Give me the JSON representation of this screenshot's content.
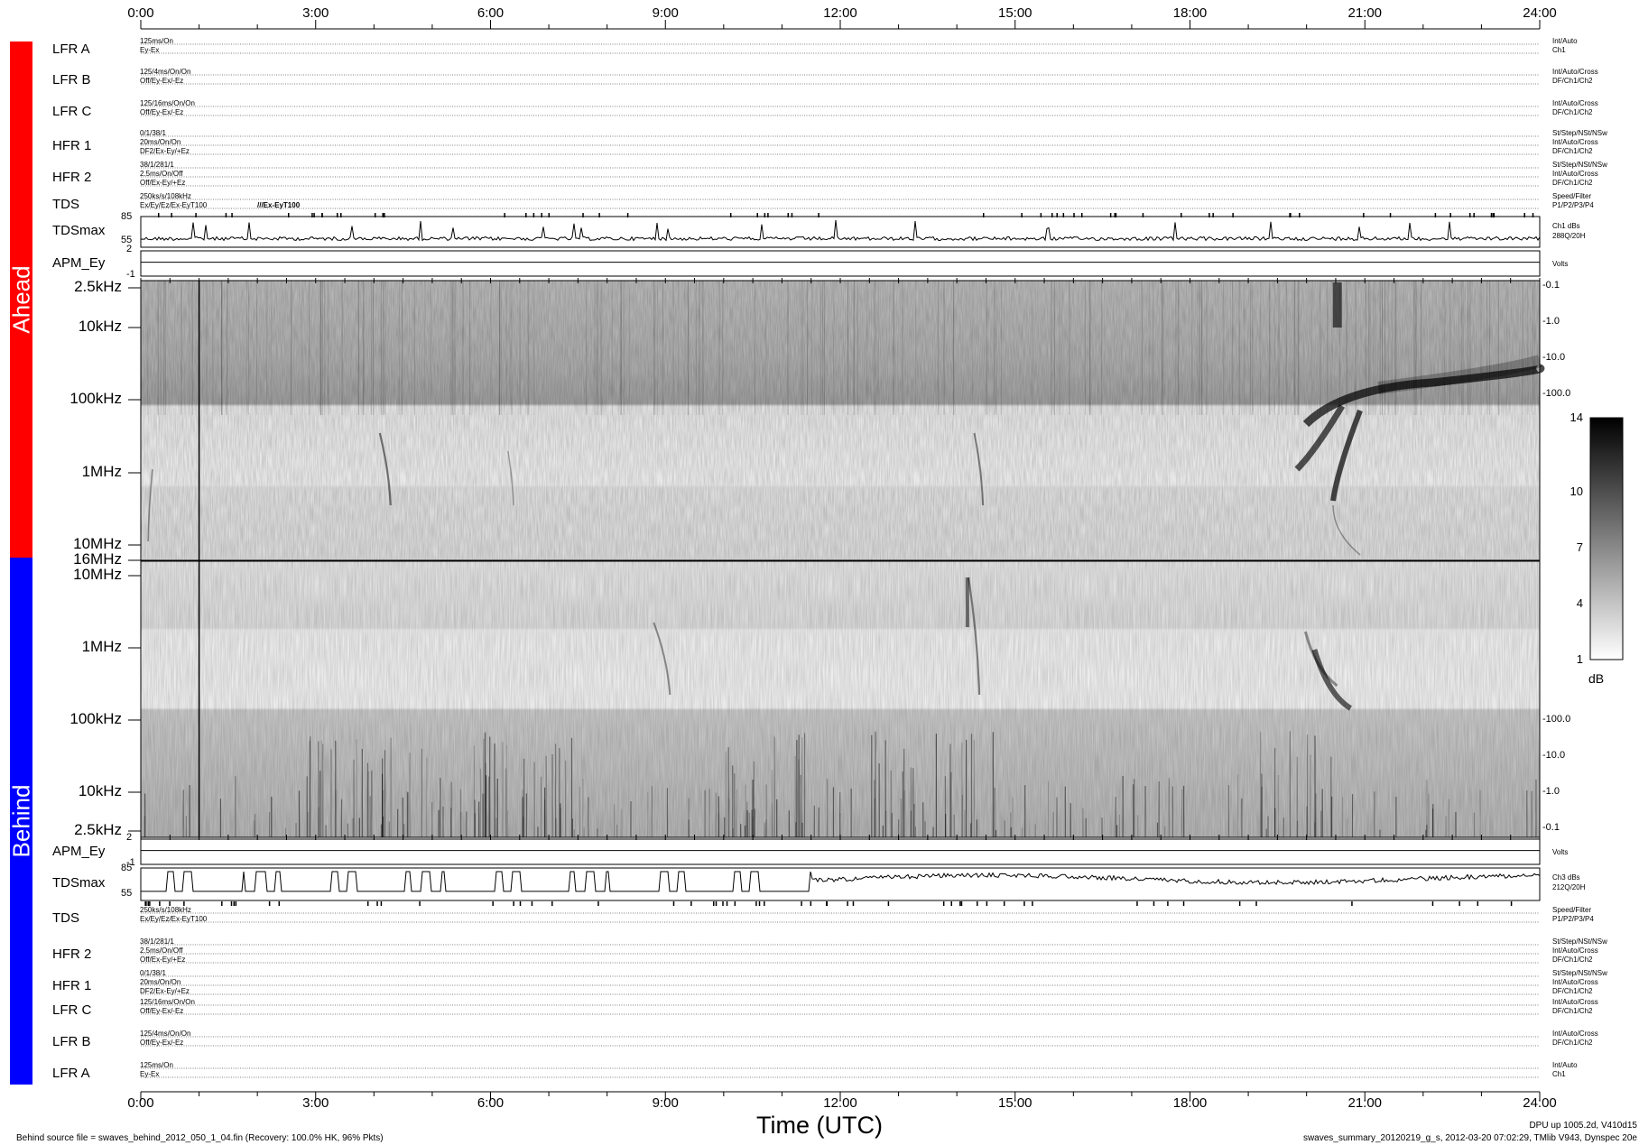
{
  "chart_data": {
    "type": "heatmap",
    "title": "",
    "xlabel": "Time (UTC)",
    "x_ticks": [
      "0:00",
      "3:00",
      "6:00",
      "9:00",
      "12:00",
      "15:00",
      "18:00",
      "21:00",
      "24:00"
    ],
    "side_labels": {
      "ahead": "Ahead",
      "behind": "Behind"
    },
    "colors": {
      "ahead": "#ff0000",
      "behind": "#0000ff"
    },
    "ahead_rows": [
      {
        "name": "LFR A",
        "left": [
          "125ms/On",
          "Ey-Ex"
        ],
        "right": [
          "Int/Auto",
          "Ch1"
        ]
      },
      {
        "name": "LFR B",
        "left": [
          "125/4ms/On/On",
          "Off/Ey-Ex/-Ez"
        ],
        "right": [
          "Int/Auto/Cross",
          "DF/Ch1/Ch2"
        ]
      },
      {
        "name": "LFR C",
        "left": [
          "125/16ms/On/On",
          "Off/Ey-Ex/-Ez"
        ],
        "right": [
          "Int/Auto/Cross",
          "DF/Ch1/Ch2"
        ]
      },
      {
        "name": "HFR 1",
        "left": [
          "0/1/38/1",
          "20ms/On/On",
          "DF2/Ex-Ey/+Ez"
        ],
        "right": [
          "St/Step/NSt/NSw",
          "Int/Auto/Cross",
          "DF/Ch1/Ch2"
        ]
      },
      {
        "name": "HFR 2",
        "left": [
          "38/1/281/1",
          "2.5ms/On/Off",
          "Off/Ex-Ey/+Ez"
        ],
        "right": [
          "St/Step/NSt/NSw",
          "Int/Auto/Cross",
          "DF/Ch1/Ch2"
        ]
      },
      {
        "name": "TDS",
        "left": [
          "250ks/s/108kHz",
          "Ex/Ey/Ez/Ex-EyT100"
        ],
        "right": [
          "Speed/Filter",
          "P1/P2/P3/P4"
        ],
        "extra": "///Ex-EyT100"
      }
    ],
    "behind_rows": [
      {
        "name": "TDS",
        "left": [
          "250ks/s/108kHz",
          "Ex/Ey/Ez/Ex-EyT100"
        ],
        "right": [
          "Speed/Filter",
          "P1/P2/P3/P4"
        ]
      },
      {
        "name": "HFR 2",
        "left": [
          "38/1/281/1",
          "2.5ms/On/Off",
          "Off/Ex-Ey/+Ez"
        ],
        "right": [
          "St/Step/NSt/NSw",
          "Int/Auto/Cross",
          "DF/Ch1/Ch2"
        ]
      },
      {
        "name": "HFR 1",
        "left": [
          "0/1/38/1",
          "20ms/On/On",
          "DF2/Ex-Ey/+Ez"
        ],
        "right": [
          "St/Step/NSt/NSw",
          "Int/Auto/Cross",
          "DF/Ch1/Ch2"
        ]
      },
      {
        "name": "LFR C",
        "left": [
          "125/16ms/On/On",
          "Off/Ey-Ex/-Ez"
        ],
        "right": [
          "Int/Auto/Cross",
          "DF/Ch1/Ch2"
        ]
      },
      {
        "name": "LFR B",
        "left": [
          "125/4ms/On/On",
          "Off/Ey-Ex/-Ez"
        ],
        "right": [
          "Int/Auto/Cross",
          "DF/Ch1/Ch2"
        ]
      },
      {
        "name": "LFR A",
        "left": [
          "125ms/On",
          "Ey-Ex"
        ],
        "right": [
          "Int/Auto",
          "Ch1"
        ]
      }
    ],
    "tdsmax_ahead": {
      "label": "TDSmax",
      "y_ticks": [
        "85",
        "55"
      ],
      "right": [
        "Ch1 dBs",
        "288Q/20H"
      ]
    },
    "apm_ahead": {
      "label": "APM_Ey",
      "y_ticks": [
        "2",
        "-1"
      ],
      "right": "Volts"
    },
    "apm_behind": {
      "label": "APM_Ey",
      "y_ticks": [
        "2",
        "-1"
      ],
      "right": "Volts"
    },
    "tdsmax_behind": {
      "label": "TDSmax",
      "y_ticks": [
        "85",
        "55"
      ],
      "right": [
        "Ch3 dBs",
        "212Q/20H"
      ]
    },
    "spec_ahead": {
      "freq_ticks": [
        "2.5kHz",
        "10kHz",
        "100kHz",
        "1MHz",
        "10MHz",
        "16MHz"
      ],
      "right_ticks": [
        "-0.1",
        "-1.0",
        "-10.0",
        "-100.0"
      ]
    },
    "spec_behind": {
      "freq_ticks": [
        "10MHz",
        "1MHz",
        "100kHz",
        "10kHz",
        "2.5kHz"
      ],
      "right_ticks": [
        "-100.0",
        "-10.0",
        "-1.0",
        "-0.1"
      ]
    },
    "colorbar": {
      "ticks": [
        "14",
        "10",
        "7",
        "4",
        "1"
      ],
      "unit": "dB",
      "range": [
        1,
        14
      ]
    },
    "events_ahead": [
      {
        "t": 0.22,
        "note": "burst"
      },
      {
        "t": 4.1,
        "note": "burst"
      },
      {
        "t": 6.3,
        "note": "burst"
      },
      {
        "t": 14.3,
        "note": "burst"
      },
      {
        "t": 20.3,
        "note": "type III group"
      }
    ],
    "events_behind": [
      {
        "t": 8.8,
        "note": "burst"
      },
      {
        "t": 14.2,
        "note": "burst"
      },
      {
        "t": 20.6,
        "note": "type III group"
      }
    ]
  },
  "footer": {
    "left": "Behind source file = swaves_behind_2012_050_1_04.fin (Recovery: 100.0% HK, 96% Pkts)",
    "right1": "DPU up 1005.2d, V410d15",
    "right2": "swaves_summary_20120219_g_s, 2012-03-20 07:02:29, TMlib V943, Dynspec 20e"
  }
}
